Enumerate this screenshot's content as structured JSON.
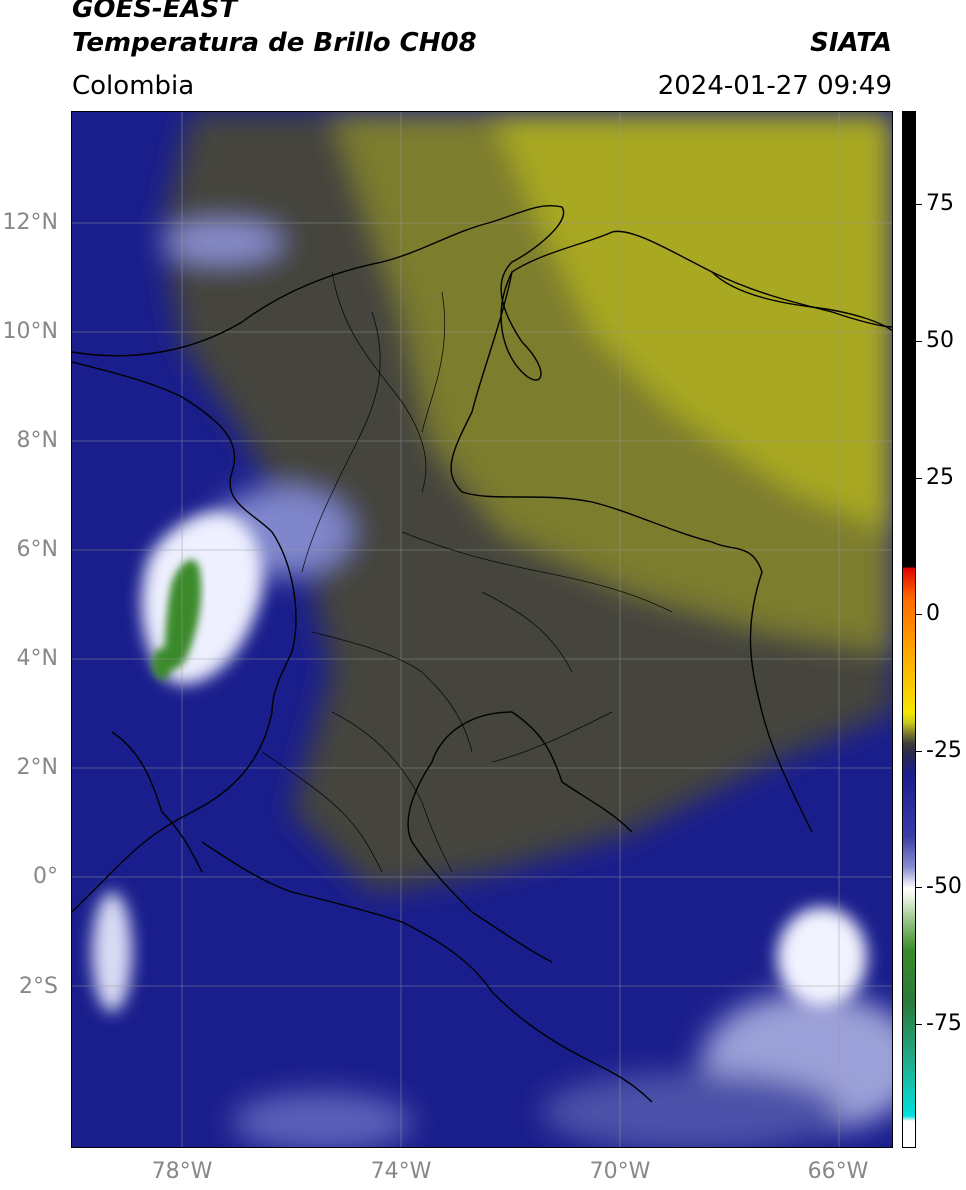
{
  "header": {
    "satellite": "GOES-EAST",
    "product": "Temperatura de Brillo CH08",
    "agency": "SIATA",
    "region": "Colombia",
    "timestamp": "2024-01-27 09:49"
  },
  "map": {
    "lon_range": [
      -80,
      -65
    ],
    "lat_range": [
      -5,
      14
    ],
    "lat_ticks": [
      {
        "label": "12°N"
      },
      {
        "label": "10°N"
      },
      {
        "label": "8°N"
      },
      {
        "label": "6°N"
      },
      {
        "label": "4°N"
      },
      {
        "label": "2°N"
      },
      {
        "label": "0°"
      },
      {
        "label": "2°S"
      }
    ],
    "lon_ticks": [
      {
        "label": "78°W"
      },
      {
        "label": "74°W"
      },
      {
        "label": "70°W"
      },
      {
        "label": "66°W"
      }
    ],
    "colors": {
      "cold_cloud": "#ffffff",
      "deep_convection": "#3a8a2a",
      "moist_layer": "#1a1e8c",
      "mid_gray": "#44443e",
      "dry_layer": "#a8a820"
    }
  },
  "colorbar": {
    "ticks": [
      {
        "label": "75"
      },
      {
        "label": "50"
      },
      {
        "label": "25"
      },
      {
        "label": "0"
      },
      {
        "label": "-25"
      },
      {
        "label": "-50"
      },
      {
        "label": "-75"
      }
    ]
  }
}
